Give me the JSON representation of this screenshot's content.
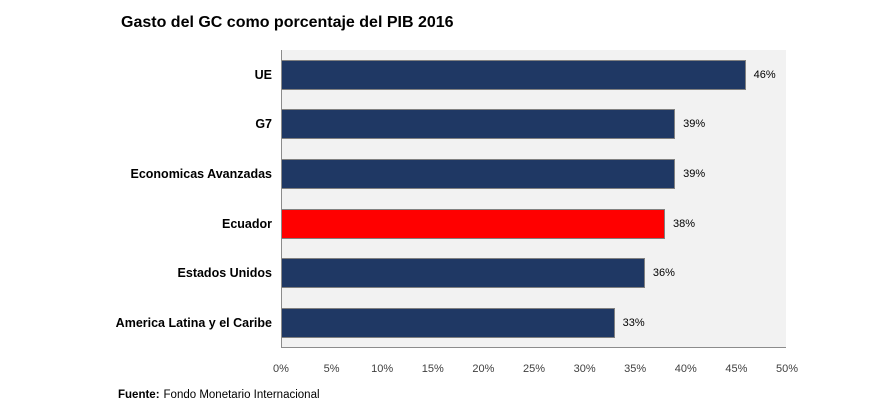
{
  "chart": {
    "title": "Gasto del GC como porcentaje del PIB 2016"
  },
  "chart_data": {
    "type": "bar",
    "orientation": "horizontal",
    "title": "Gasto del GC como porcentaje del PIB 2016",
    "categories": [
      "UE",
      "G7",
      "Economicas Avanzadas",
      "Ecuador",
      "Estados Unidos",
      "America Latina y el Caribe"
    ],
    "values": [
      46,
      39,
      39,
      38,
      36,
      33
    ],
    "value_labels": [
      "46%",
      "39%",
      "39%",
      "38%",
      "36%",
      "33%"
    ],
    "bar_colors": [
      "#1F3864",
      "#1F3864",
      "#1F3864",
      "#FF0000",
      "#1F3864",
      "#1F3864"
    ],
    "xlabel": "",
    "ylabel": "",
    "xlim": [
      0,
      50
    ],
    "x_tick_labels": [
      "0%",
      "5%",
      "10%",
      "15%",
      "20%",
      "25%",
      "30%",
      "35%",
      "40%",
      "45%",
      "50%"
    ],
    "grid": false,
    "legend": false,
    "plot_background": "#F2F2F2",
    "highlighted_category": "Ecuador"
  },
  "colors": {
    "bar_default": "#1F3864",
    "bar_highlight": "#FF0000",
    "plot_bg": "#F2F2F2",
    "bar_border": "#808080",
    "axis_line": "#8C8C8C"
  },
  "footer": {
    "label": "Fuente:",
    "text": "Fondo Monetario Internacional"
  }
}
